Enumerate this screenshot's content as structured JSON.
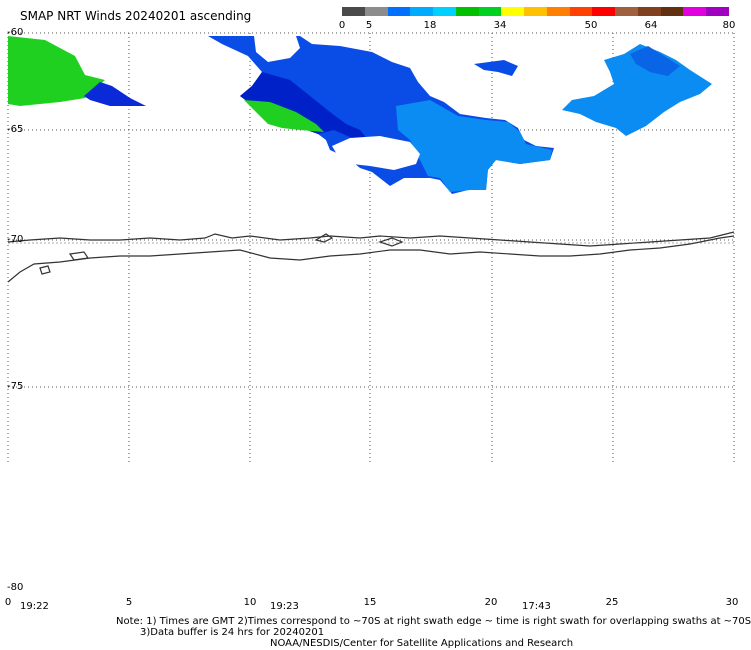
{
  "title": "SMAP NRT Winds 20240201 ascending",
  "colorbar": {
    "labels": [
      "0",
      "5",
      "18",
      "34",
      "50",
      "64",
      "80"
    ],
    "segments": [
      {
        "color": "#4a4a4a"
      },
      {
        "color": "#8c8c8c"
      },
      {
        "color": "#0070ff"
      },
      {
        "color": "#00aaff"
      },
      {
        "color": "#00d0ff"
      },
      {
        "color": "#00c000"
      },
      {
        "color": "#00d020"
      },
      {
        "color": "#ffff00"
      },
      {
        "color": "#ffc000"
      },
      {
        "color": "#ff8000"
      },
      {
        "color": "#ff4000"
      },
      {
        "color": "#ff0000"
      },
      {
        "color": "#a06040"
      },
      {
        "color": "#804020"
      },
      {
        "color": "#603010"
      },
      {
        "color": "#e000e0"
      },
      {
        "color": "#a000c0"
      }
    ]
  },
  "latitudes": [
    "-60",
    "-65",
    "-70",
    "-75",
    "-80"
  ],
  "longitudes": [
    "0",
    "5",
    "10",
    "15",
    "20",
    "25",
    "30"
  ],
  "times": [
    "19:22",
    "19:23",
    "17:43"
  ],
  "note": {
    "line1": "Note: 1) Times are GMT 2)Times correspond to ~70S at right swath edge ~ time is right swath for overlapping swaths at ~70S",
    "line2": "3)Data buffer is 24 hrs for 20240201",
    "line3": "NOAA/NESDIS/Center for Satellite Applications and Research"
  },
  "wind_colors": {
    "low_blue": "#0a4ce6",
    "mid_blue": "#0a7cf0",
    "light_blue": "#0a9cf5",
    "dark_blue": "#0020d0",
    "green": "#20d020"
  }
}
